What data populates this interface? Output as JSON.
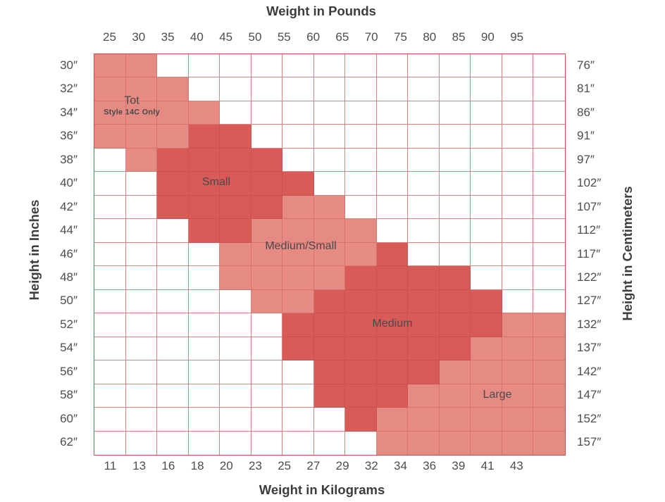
{
  "chart_data": {
    "type": "heatmap",
    "titles": {
      "top": "Weight in Pounds",
      "bottom": "Weight in Kilograms",
      "left": "Height in Inches",
      "right": "Height in Centimeters"
    },
    "columns_lb": [
      "25",
      "30",
      "35",
      "40",
      "45",
      "50",
      "55",
      "60",
      "65",
      "70",
      "75",
      "80",
      "85",
      "90",
      "95"
    ],
    "columns_kg": [
      "11",
      "13",
      "16",
      "18",
      "20",
      "23",
      "25",
      "27",
      "29",
      "32",
      "34",
      "36",
      "39",
      "41",
      "43"
    ],
    "rows_in": [
      "30″",
      "32″",
      "34″",
      "36″",
      "38″",
      "40″",
      "42″",
      "44″",
      "46″",
      "48″",
      "50″",
      "52″",
      "54″",
      "56″",
      "58″",
      "60″",
      "62″"
    ],
    "rows_cm": [
      "76″",
      "81″",
      "86″",
      "91″",
      "97″",
      "102″",
      "107″",
      "112″",
      "117″",
      "122″",
      "127″",
      "132″",
      "137″",
      "142″",
      "147″",
      "152″",
      "157″"
    ],
    "cell_codes": {
      "0": "white",
      "1": "light-red",
      "2": "dark-red"
    },
    "matrix": [
      "110000000000000",
      "111000000000000",
      "111100000000000",
      "111220000000000",
      "012222000000000",
      "002222200000000",
      "002222110000000",
      "000221111000000",
      "000011111200000",
      "000011112222000",
      "000001122222200",
      "000000222222211",
      "000000222222111",
      "000000022221111",
      "000000022211111",
      "000000002111111",
      "000000000111111"
    ],
    "regions": {
      "tot": "Tot",
      "tot_sub": "Style 14C Only",
      "small": "Small",
      "medium_small": "Medium/Small",
      "medium": "Medium",
      "large": "Large"
    },
    "colors": {
      "light_red": "#e58b84",
      "dark_red": "#d85b58",
      "grid_line": "#d68383",
      "label_text": "#4d4d4d"
    }
  }
}
